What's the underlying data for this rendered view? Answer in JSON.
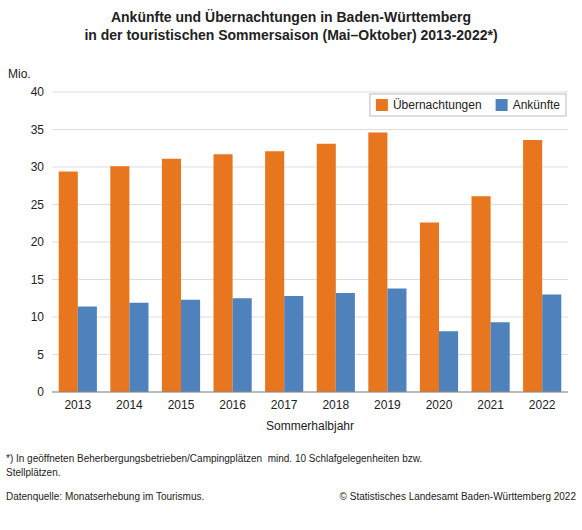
{
  "chart_data": {
    "type": "bar",
    "title": "Ankünfte und Übernachtungen in Baden-Württemberg",
    "subtitle": "in der touristischen Sommersaison (Mai–Oktober) 2013-2022*)",
    "x_label": "Sommerhalbjahr",
    "y_label": "Mio.",
    "categories": [
      "2013",
      "2014",
      "2015",
      "2016",
      "2017",
      "2018",
      "2019",
      "2020",
      "2021",
      "2022"
    ],
    "series": [
      {
        "name": "Übernachtungen",
        "color": "#E8761E",
        "values": [
          29.4,
          30.1,
          31.1,
          31.7,
          32.1,
          33.1,
          34.6,
          22.6,
          26.1,
          33.6
        ]
      },
      {
        "name": "Ankünfte",
        "color": "#4F81BD",
        "values": [
          11.4,
          11.9,
          12.3,
          12.5,
          12.8,
          13.2,
          13.8,
          8.1,
          9.3,
          13.0
        ]
      }
    ],
    "ylim": [
      0,
      40
    ],
    "yticks": [
      0,
      5,
      10,
      15,
      20,
      25,
      30,
      35,
      40
    ],
    "grid": true,
    "legend": "upper right",
    "annotations": [
      "*) In geöffneten Beherbergungsbetrieben/Campingplätzen  mind. 10 Schlafgelegenheiten bzw.",
      "Stellplätzen.",
      "Datenquelle: Monatserhebung im Tourismus.",
      "© Statistisches Landesamt Baden-Württemberg 2022"
    ]
  }
}
